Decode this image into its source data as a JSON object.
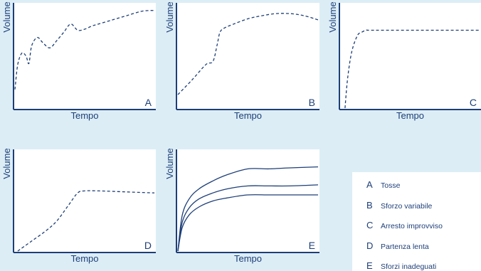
{
  "colors": {
    "background": "#dcedf6",
    "panel": "#ffffff",
    "ink": "#1d3f78"
  },
  "chart_data": [
    {
      "id": "A",
      "type": "line",
      "panel_letter": "A",
      "xlabel": "Tempo",
      "ylabel": "Volume",
      "xlim": [
        0,
        1
      ],
      "ylim": [
        0,
        1
      ],
      "series": [
        {
          "style": "dashed",
          "x": [
            0,
            0.02,
            0.05,
            0.08,
            0.1,
            0.12,
            0.16,
            0.2,
            0.25,
            0.3,
            0.35,
            0.4,
            0.45,
            0.5,
            0.55,
            0.6,
            0.7,
            0.8,
            0.9,
            0.96,
            1.0
          ],
          "y": [
            0.18,
            0.42,
            0.53,
            0.5,
            0.43,
            0.6,
            0.68,
            0.63,
            0.58,
            0.65,
            0.73,
            0.81,
            0.75,
            0.76,
            0.79,
            0.81,
            0.85,
            0.89,
            0.93,
            0.94,
            0.94
          ]
        }
      ]
    },
    {
      "id": "B",
      "type": "line",
      "panel_letter": "B",
      "xlabel": "Tempo",
      "ylabel": "Volume",
      "xlim": [
        0,
        1
      ],
      "ylim": [
        0,
        1
      ],
      "series": [
        {
          "style": "dashed",
          "x": [
            0,
            0.1,
            0.2,
            0.25,
            0.28,
            0.3,
            0.33,
            0.38,
            0.5,
            0.6,
            0.7,
            0.8,
            0.9,
            1.0
          ],
          "y": [
            0.13,
            0.27,
            0.42,
            0.45,
            0.61,
            0.73,
            0.77,
            0.8,
            0.86,
            0.89,
            0.91,
            0.91,
            0.89,
            0.85
          ]
        }
      ]
    },
    {
      "id": "C",
      "type": "line",
      "panel_letter": "C",
      "xlabel": "Tempo",
      "ylabel": "Volume",
      "xlim": [
        0,
        1
      ],
      "ylim": [
        0,
        1
      ],
      "series": [
        {
          "style": "dashed",
          "x": [
            0.03,
            0.05,
            0.08,
            0.12,
            0.15,
            0.18,
            0.2,
            0.3,
            0.5,
            0.7,
            1.0
          ],
          "y": [
            0.0,
            0.3,
            0.55,
            0.7,
            0.73,
            0.75,
            0.75,
            0.75,
            0.75,
            0.75,
            0.75
          ]
        }
      ]
    },
    {
      "id": "D",
      "type": "line",
      "panel_letter": "D",
      "xlabel": "Tempo",
      "ylabel": "Volume",
      "xlim": [
        0,
        1
      ],
      "ylim": [
        0,
        1
      ],
      "series": [
        {
          "style": "dashed",
          "x": [
            0.02,
            0.12,
            0.22,
            0.3,
            0.38,
            0.45,
            0.5,
            0.6,
            0.8,
            1.0
          ],
          "y": [
            0.0,
            0.1,
            0.2,
            0.3,
            0.45,
            0.58,
            0.6,
            0.6,
            0.59,
            0.58
          ]
        }
      ]
    },
    {
      "id": "E",
      "type": "line",
      "panel_letter": "E",
      "xlabel": "Tempo",
      "ylabel": "Volume",
      "xlim": [
        0,
        1
      ],
      "ylim": [
        0,
        1
      ],
      "series": [
        {
          "style": "solid",
          "x": [
            0,
            0.03,
            0.08,
            0.15,
            0.25,
            0.35,
            0.5,
            0.65,
            0.8,
            1.0
          ],
          "y": [
            0,
            0.35,
            0.52,
            0.62,
            0.7,
            0.76,
            0.82,
            0.82,
            0.83,
            0.84
          ]
        },
        {
          "style": "solid",
          "x": [
            0,
            0.03,
            0.08,
            0.15,
            0.25,
            0.35,
            0.5,
            0.65,
            0.8,
            1.0
          ],
          "y": [
            0,
            0.28,
            0.43,
            0.52,
            0.58,
            0.62,
            0.65,
            0.65,
            0.65,
            0.66
          ]
        },
        {
          "style": "solid",
          "x": [
            0,
            0.03,
            0.08,
            0.15,
            0.25,
            0.35,
            0.5,
            0.65,
            0.8,
            1.0
          ],
          "y": [
            0,
            0.23,
            0.36,
            0.44,
            0.5,
            0.53,
            0.56,
            0.56,
            0.56,
            0.56
          ]
        }
      ]
    }
  ],
  "legend": [
    {
      "key": "A",
      "label": "Tosse"
    },
    {
      "key": "B",
      "label": "Sforzo variabile"
    },
    {
      "key": "C",
      "label": "Arresto improvviso"
    },
    {
      "key": "D",
      "label": "Partenza lenta"
    },
    {
      "key": "E",
      "label": "Sforzi inadeguati"
    }
  ]
}
